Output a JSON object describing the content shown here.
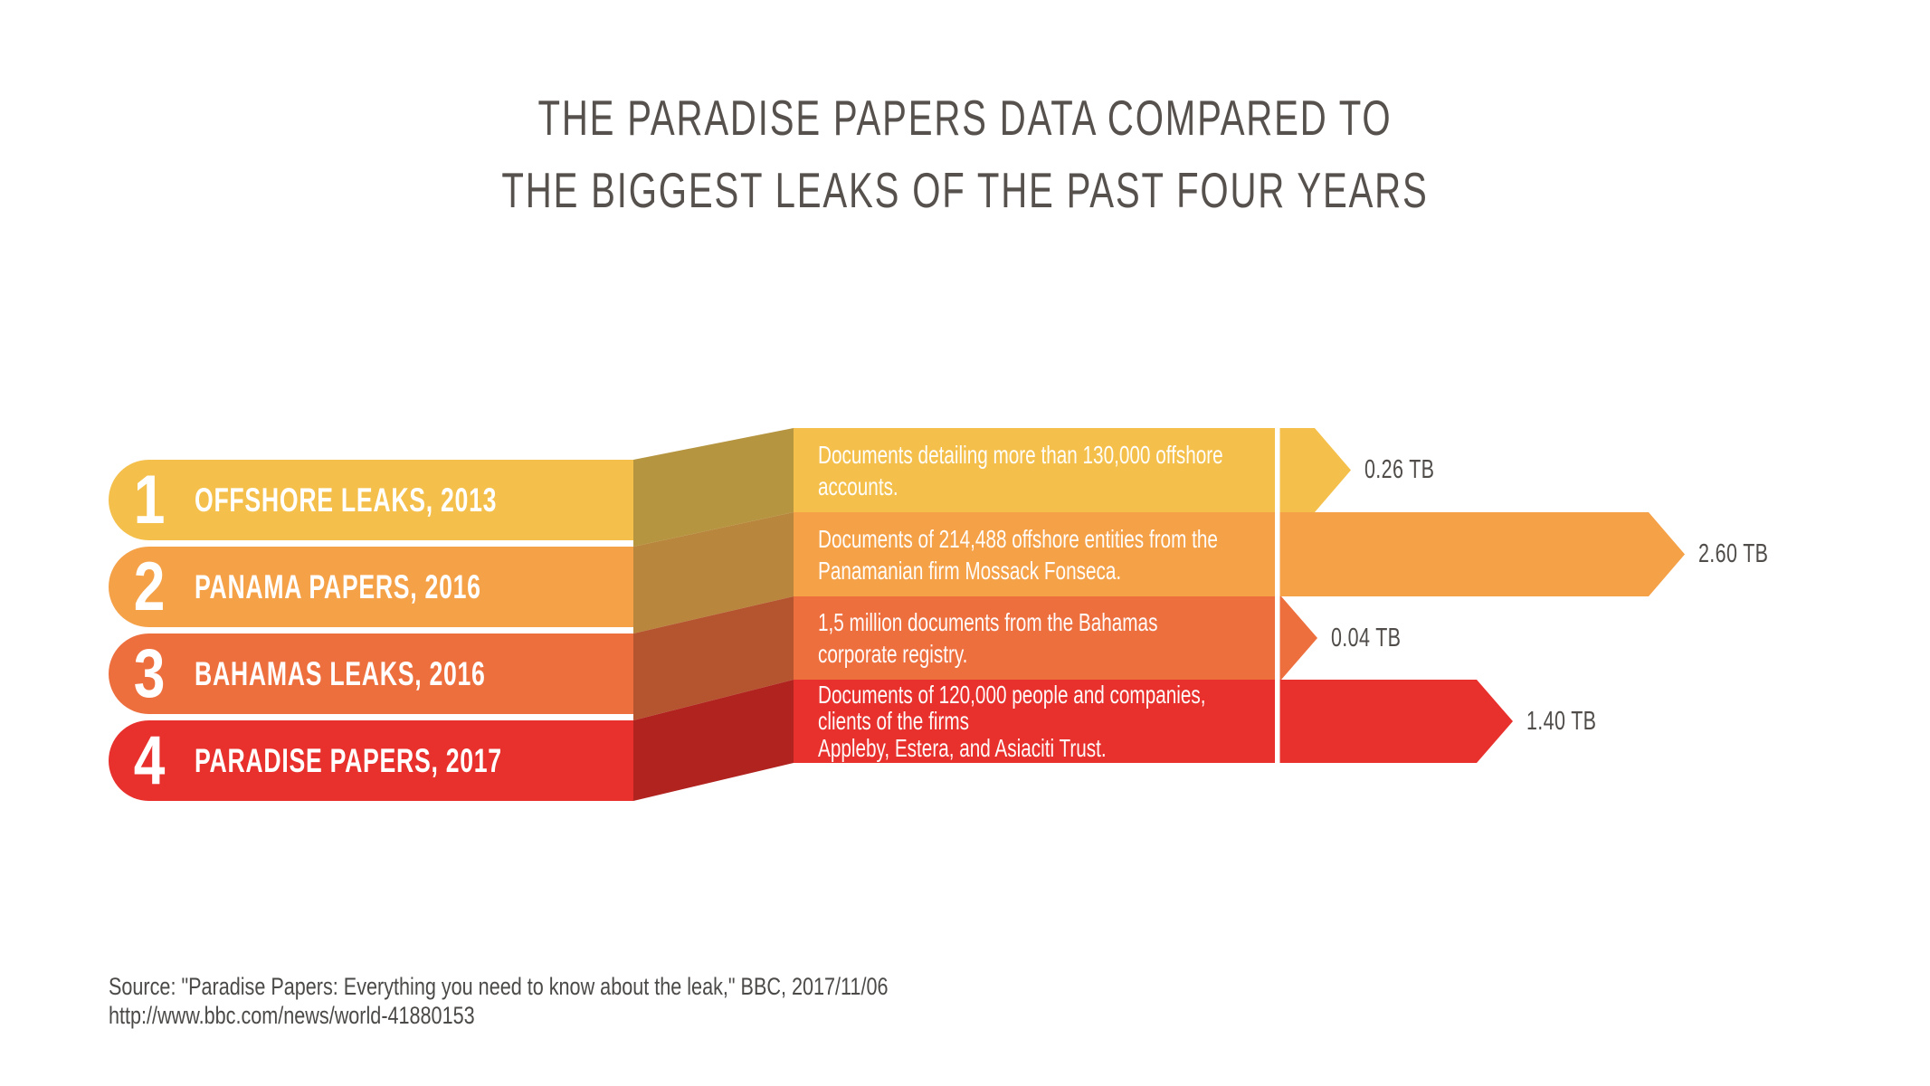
{
  "page": {
    "background": "#FFFFFF"
  },
  "title": {
    "line1": "THE PARADISE PAPERS DATA COMPARED TO",
    "line2": "THE BIGGEST LEAKS OF THE PAST FOUR YEARS",
    "color": "#56514D"
  },
  "chart_data": {
    "type": "bar",
    "orientation": "horizontal",
    "unit": "TB",
    "categories": [
      "OFFSHORE LEAKS, 2013",
      "PANAMA PAPERS, 2016",
      "BAHAMAS LEAKS, 2016",
      "PARADISE PAPERS, 2017"
    ],
    "values": [
      0.26,
      2.6,
      0.04,
      1.4
    ],
    "value_labels": [
      "0.26 TB",
      "2.60 TB",
      "0.04 TB",
      "1.40 TB"
    ],
    "rows": [
      {
        "rank": "1",
        "label": "OFFSHORE LEAKS, 2013",
        "description": "Documents detailing more than 130,000 offshore\naccounts.",
        "value": 0.26,
        "value_label": "0.26 TB",
        "color": "#F4C04B",
        "color_dark": "#B5953F"
      },
      {
        "rank": "2",
        "label": "PANAMA PAPERS, 2016",
        "description": "Documents of 214,488 offshore entities from the\nPanamanian firm Mossack Fonseca.",
        "value": 2.6,
        "value_label": "2.60 TB",
        "color": "#F5A148",
        "color_dark": "#B8863C"
      },
      {
        "rank": "3",
        "label": "BAHAMAS LEAKS, 2016",
        "description": "1,5 million documents from the Bahamas\ncorporate registry.",
        "value": 0.04,
        "value_label": "0.04 TB",
        "color": "#EE6F3E",
        "color_dark": "#B5552F"
      },
      {
        "rank": "4",
        "label": "PARADISE PAPERS, 2017",
        "description": "Documents of 120,000 people and companies,\nclients of the firms\nAppleby, Estera, and Asiaciti Trust.",
        "value": 1.4,
        "value_label": "1.40 TB",
        "color": "#E8302C",
        "color_dark": "#B1231F"
      }
    ],
    "divider_color": "#FFFFFF",
    "value_label_color": "#4F4C49"
  },
  "source": {
    "line1": "Source: \"Paradise Papers: Everything you need to know about the leak,\" BBC, 2017/11/06",
    "line2": "http://www.bbc.com/news/world-41880153",
    "color": "#4B4A48"
  }
}
